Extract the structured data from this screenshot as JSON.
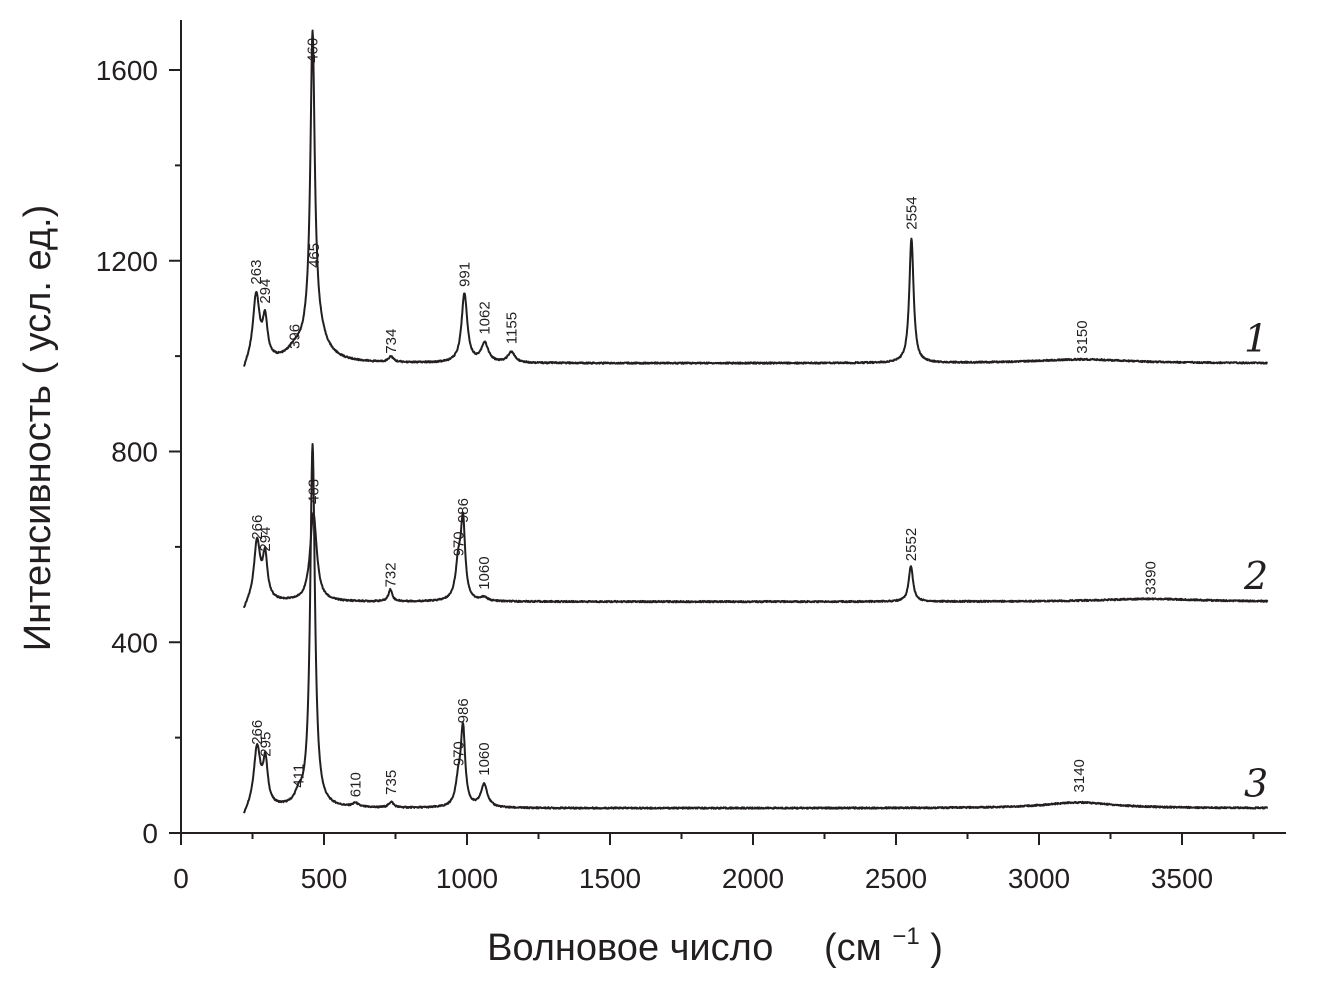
{
  "chart_data": {
    "type": "line",
    "xlabel_main": "Волновое число",
    "xlabel_unit_open": "(см",
    "xlabel_unit_sup": "−1",
    "xlabel_unit_close": ")",
    "ylabel": "Интенсивность  ( усл. ед.)",
    "xlim": [
      0,
      3900
    ],
    "ylim": [
      0,
      1700
    ],
    "x_ticks": [
      0,
      500,
      1000,
      1500,
      2000,
      2500,
      3000,
      3500
    ],
    "x_tick_labels": [
      "0",
      "500",
      "1000",
      "1500",
      "2000",
      "2500",
      "3000",
      "3500"
    ],
    "y_ticks": [
      0,
      400,
      800,
      1200,
      1600
    ],
    "y_tick_labels": [
      "0",
      "400",
      "800",
      "1200",
      "1600"
    ],
    "color": "#231f20",
    "series": [
      {
        "name": "1",
        "baseline": 985,
        "range": [
          220,
          3800
        ],
        "peaks": [
          {
            "x": 263,
            "height": 140,
            "width": 14,
            "label": "263",
            "label_at": 1150
          },
          {
            "x": 294,
            "height": 80,
            "width": 10,
            "label": "294",
            "label_at": 1110
          },
          {
            "x": 396,
            "height": 15,
            "width": 30,
            "label": "396",
            "label_at": 1015
          },
          {
            "x": 460,
            "height": 615,
            "width": 9,
            "label": "460",
            "label_at": 1615
          },
          {
            "x": 465,
            "height": 80,
            "width": 40,
            "label": "465",
            "label_at": 1185
          },
          {
            "x": 734,
            "height": 12,
            "width": 10,
            "label": "734",
            "label_at": 1005
          },
          {
            "x": 991,
            "height": 145,
            "width": 12,
            "label": "991",
            "label_at": 1145
          },
          {
            "x": 1062,
            "height": 40,
            "width": 15,
            "label": "1062",
            "label_at": 1045
          },
          {
            "x": 1155,
            "height": 22,
            "width": 15,
            "label": "1155",
            "label_at": 1025
          },
          {
            "x": 2554,
            "height": 262,
            "width": 9,
            "label": "2554",
            "label_at": 1265
          },
          {
            "x": 3150,
            "height": 8,
            "width": 200,
            "label": "3150",
            "label_at": 1005
          }
        ]
      },
      {
        "name": "2",
        "baseline": 485,
        "range": [
          220,
          3800
        ],
        "peaks": [
          {
            "x": 266,
            "height": 125,
            "width": 13,
            "label": "266",
            "label_at": 615
          },
          {
            "x": 294,
            "height": 90,
            "width": 10,
            "label": "294",
            "label_at": 590
          },
          {
            "x": 463,
            "height": 185,
            "width": 14,
            "label": "463",
            "label_at": 690
          },
          {
            "x": 732,
            "height": 25,
            "width": 8,
            "label": "732",
            "label_at": 515
          },
          {
            "x": 970,
            "height": 75,
            "width": 12,
            "label": "970",
            "label_at": 580
          },
          {
            "x": 986,
            "height": 160,
            "width": 9,
            "label": "986",
            "label_at": 650
          },
          {
            "x": 1060,
            "height": 8,
            "width": 12,
            "label": "1060",
            "label_at": 510
          },
          {
            "x": 2552,
            "height": 75,
            "width": 9,
            "label": "2552",
            "label_at": 570
          },
          {
            "x": 3390,
            "height": 6,
            "width": 200,
            "label": "3390",
            "label_at": 500
          }
        ]
      },
      {
        "name": "3",
        "baseline": 52,
        "range": [
          220,
          3800
        ],
        "peaks": [
          {
            "x": 266,
            "height": 125,
            "width": 14,
            "label": "266",
            "label_at": 185
          },
          {
            "x": 295,
            "height": 90,
            "width": 10,
            "label": "295",
            "label_at": 160
          },
          {
            "x": 411,
            "height": 20,
            "width": 15,
            "label": "411",
            "label_at": 95
          },
          {
            "x": 460,
            "height": 760,
            "width": 10,
            "label": "",
            "label_at": 0
          },
          {
            "x": 610,
            "height": 8,
            "width": 12,
            "label": "610",
            "label_at": 75
          },
          {
            "x": 735,
            "height": 12,
            "width": 10,
            "label": "735",
            "label_at": 80
          },
          {
            "x": 970,
            "height": 50,
            "width": 12,
            "label": "970",
            "label_at": 140
          },
          {
            "x": 986,
            "height": 160,
            "width": 9,
            "label": "986",
            "label_at": 230
          },
          {
            "x": 1060,
            "height": 48,
            "width": 14,
            "label": "1060",
            "label_at": 120
          },
          {
            "x": 3140,
            "height": 12,
            "width": 150,
            "label": "3140",
            "label_at": 85
          }
        ]
      }
    ]
  }
}
